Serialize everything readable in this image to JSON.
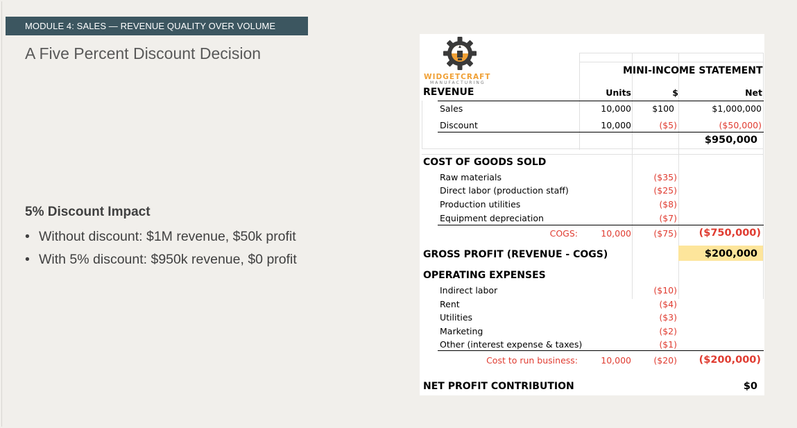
{
  "module_banner": "MODULE 4: SALES — REVENUE QUALITY OVER VOLUME",
  "slide_title": "A Five Percent Discount Decision",
  "impact": {
    "heading": "5% Discount Impact",
    "bullets": [
      "Without discount: $1M revenue, $50k profit",
      "With 5% discount: $950k revenue, $0 profit"
    ]
  },
  "logo": {
    "name": "WIDGETCRAFT",
    "sub": "MANUFACTURING",
    "icon": "gear-lightbulb-icon",
    "colors": [
      "#f0a035",
      "#3a3a3a"
    ]
  },
  "statement": {
    "title": "MINI-INCOME STATEMENT",
    "headers": {
      "units": "Units",
      "price": "$",
      "net": "Net"
    },
    "revenue": {
      "label": "REVENUE",
      "sales": {
        "label": "Sales",
        "units": "10,000",
        "price": "$100",
        "net": "$1,000,000"
      },
      "discount": {
        "label": "Discount",
        "units": "10,000",
        "price": "($5)",
        "net": "($50,000)"
      },
      "total": "$950,000"
    },
    "cogs": {
      "label": "COST OF GOODS SOLD",
      "items": [
        {
          "label": "Raw materials",
          "price": "($35)"
        },
        {
          "label": "Direct labor (production staff)",
          "price": "($25)"
        },
        {
          "label": "Production utilities",
          "price": "($8)"
        },
        {
          "label": "Equipment depreciation",
          "price": "($7)"
        }
      ],
      "total_label": "COGS:",
      "total_units": "10,000",
      "total_price": "($75)",
      "total_net": "($750,000)"
    },
    "gross_profit": {
      "label": "GROSS PROFIT (REVENUE - COGS)",
      "value": "$200,000",
      "highlight_color": "#fde59b"
    },
    "opex": {
      "label": "OPERATING EXPENSES",
      "items": [
        {
          "label": "Indirect labor",
          "price": "($10)"
        },
        {
          "label": "Rent",
          "price": "($4)"
        },
        {
          "label": "Utilities",
          "price": "($3)"
        },
        {
          "label": "Marketing",
          "price": "($2)"
        },
        {
          "label": "Other (interest expense & taxes)",
          "price": "($1)"
        }
      ],
      "total_label": "Cost to run business:",
      "total_units": "10,000",
      "total_price": "($20)",
      "total_net": "($200,000)"
    },
    "net_profit": {
      "label": "NET PROFIT CONTRIBUTION",
      "value": "$0"
    }
  },
  "colors": {
    "banner_bg": "#3c5660",
    "negative": "#e03c31",
    "highlight": "#fde59b",
    "background": "#f1efeb"
  }
}
